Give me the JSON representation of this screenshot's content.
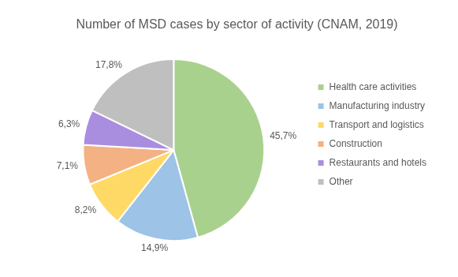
{
  "chart_data": {
    "type": "pie",
    "title": "Number of MSD cases by sector of activity (CNAM, 2019)",
    "categories": [
      "Health care activities",
      "Manufacturing industry",
      "Transport and logistics",
      "Construction",
      "Restaurants and hotels",
      "Other"
    ],
    "values": [
      45.7,
      14.9,
      8.2,
      7.1,
      6.3,
      17.8
    ],
    "value_labels": [
      "45,7%",
      "14,9%",
      "8,2%",
      "7,1%",
      "6,3%",
      "17,8%"
    ],
    "colors": [
      "#a9d18e",
      "#9dc3e6",
      "#ffd966",
      "#f4b183",
      "#a98ee0",
      "#bfbfbf"
    ],
    "data_labels": true,
    "legend": "right"
  }
}
